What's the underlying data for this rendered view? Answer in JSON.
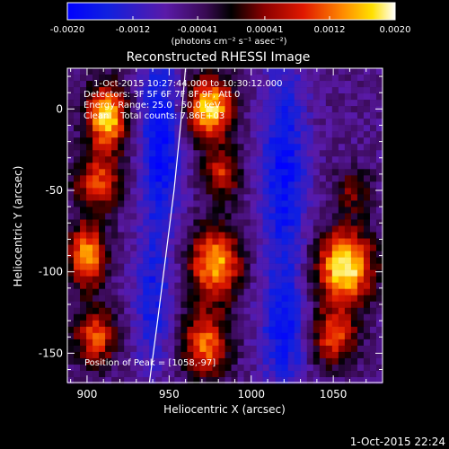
{
  "chart_data": {
    "type": "heatmap",
    "title": "Reconstructed RHESSI Image",
    "xlabel": "Heliocentric X (arcsec)",
    "ylabel": "Heliocentric Y (arcsec)",
    "xlim": [
      888,
      1080
    ],
    "ylim": [
      -168,
      25
    ],
    "x_ticks": [
      900,
      950,
      1000,
      1050
    ],
    "y_ticks": [
      0,
      -50,
      -100,
      -150
    ],
    "colorbar": {
      "min": -0.002,
      "max": 0.002,
      "tick_values": [
        -0.002,
        -0.0012,
        -0.00041,
        0.00041,
        0.0012,
        0.002
      ],
      "tick_labels": [
        "-0.0020",
        "-0.0012",
        "-0.00041",
        "0.00041",
        "0.0012",
        "0.0020"
      ],
      "unit_label": "(photons cm⁻² s⁻¹ asec⁻²)"
    },
    "annotations": [
      "1-Oct-2015 10:27:44.000 to 10:30:12.000",
      "Detectors: 3F 5F 6F 7F 8F 9F, Att 0",
      "Energy Range: 25.0 - 50.0 keV",
      "Clean    Total counts: 7.86E+03"
    ],
    "peak_label": "Position of Peak = [1058,-97]",
    "limb_curve": [
      [
        938,
        -168
      ],
      [
        943,
        -130
      ],
      [
        948,
        -90
      ],
      [
        953,
        -50
      ],
      [
        957,
        -10
      ],
      [
        960,
        25
      ]
    ],
    "sources": [
      {
        "x": 912,
        "y": -5,
        "sx": 9,
        "sy": 14,
        "amp": 0.0024
      },
      {
        "x": 907,
        "y": -45,
        "sx": 10,
        "sy": 12,
        "amp": 0.0016
      },
      {
        "x": 900,
        "y": -90,
        "sx": 8,
        "sy": 14,
        "amp": 0.0021
      },
      {
        "x": 905,
        "y": -140,
        "sx": 9,
        "sy": 12,
        "amp": 0.0017
      },
      {
        "x": 975,
        "y": 0,
        "sx": 10,
        "sy": 14,
        "amp": 0.0024
      },
      {
        "x": 982,
        "y": -40,
        "sx": 8,
        "sy": 10,
        "amp": 0.0014
      },
      {
        "x": 978,
        "y": -95,
        "sx": 11,
        "sy": 16,
        "amp": 0.0022
      },
      {
        "x": 972,
        "y": -145,
        "sx": 10,
        "sy": 14,
        "amp": 0.0018
      },
      {
        "x": 1057,
        "y": -97,
        "sx": 12,
        "sy": 16,
        "amp": 0.0026
      },
      {
        "x": 1050,
        "y": -140,
        "sx": 10,
        "sy": 12,
        "amp": 0.0016
      },
      {
        "x": 1062,
        "y": -50,
        "sx": 8,
        "sy": 10,
        "amp": 0.0009
      }
    ],
    "troughs": [
      {
        "x": 945,
        "y": -20,
        "sx": 9,
        "sy": 40,
        "amp": -0.0013
      },
      {
        "x": 1020,
        "y": -40,
        "sx": 10,
        "sy": 50,
        "amp": -0.0012
      },
      {
        "x": 1020,
        "y": -140,
        "sx": 10,
        "sy": 25,
        "amp": -0.001
      },
      {
        "x": 940,
        "y": -120,
        "sx": 8,
        "sy": 30,
        "amp": -0.0009
      }
    ],
    "grid": false
  },
  "footer_timestamp": "1-Oct-2015 22:24"
}
